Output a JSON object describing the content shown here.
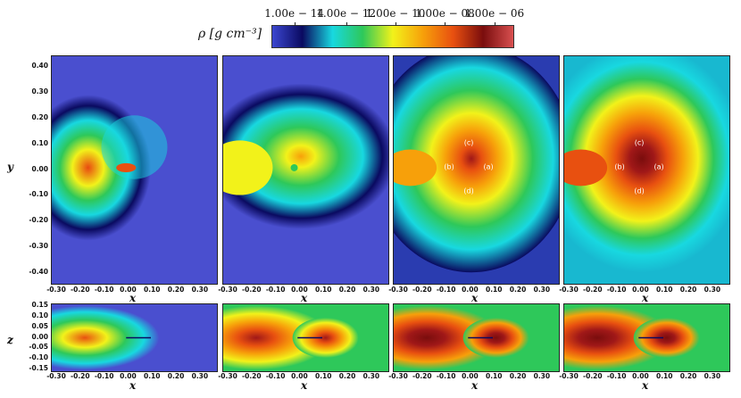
{
  "colorbar": {
    "symbol": "ρ [g cm⁻³]",
    "tick_labels": [
      "1.00e − 14",
      "1.00e − 12",
      "1.00e − 10",
      "1.00e − 08",
      "1.00e − 06"
    ],
    "colors": [
      "#3b46d0",
      "#0a0a60",
      "#18d8e0",
      "#2ec85a",
      "#f2f21a",
      "#f7a00a",
      "#e85010",
      "#7a0d0d",
      "#d85050"
    ]
  },
  "top_row": {
    "y_axis_label": "y",
    "x_axis_label": "x",
    "x_ticks": [
      "-0.30",
      "-0.20",
      "-0.10",
      "0.00",
      "0.10",
      "0.20",
      "0.30"
    ],
    "y_ticks": [
      "0.40",
      "0.30",
      "0.20",
      "0.10",
      "0.00",
      "-0.10",
      "-0.20",
      "-0.30",
      "-0.40"
    ]
  },
  "bottom_row": {
    "z_axis_label": "z",
    "x_axis_label": "x",
    "x_ticks": [
      "-0.30",
      "-0.20",
      "-0.10",
      "0.00",
      "0.10",
      "0.20",
      "0.30"
    ],
    "z_ticks": [
      "0.15",
      "0.10",
      "0.05",
      "0.00",
      "-0.05",
      "-0.10",
      "-0.15"
    ]
  },
  "markers": {
    "a": "(a)",
    "b": "(b)",
    "c": "(c)",
    "d": "(d)"
  }
}
